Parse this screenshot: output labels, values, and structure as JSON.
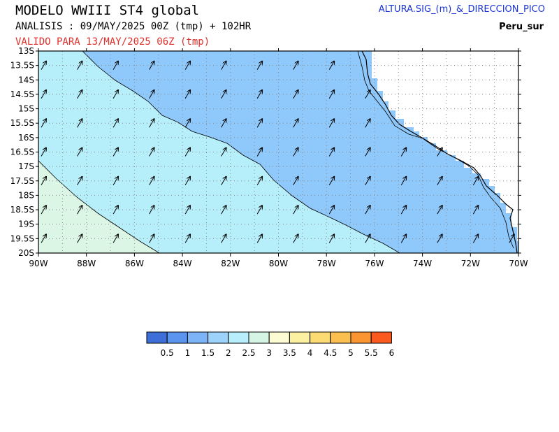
{
  "header": {
    "title": "MODELO WWIII ST4 global",
    "analysis": "ANALISIS : 09/MAY/2025 00Z  (tmp) + 102HR",
    "valid": "VALIDO PARA  13/MAY/2025 06Z  (tmp)",
    "product": "ALTURA.SIG_(m)_&_DIRECCION_PICO",
    "region": "Peru_sur"
  },
  "map": {
    "lat_labels": [
      "13S",
      "13.5S",
      "14S",
      "14.5S",
      "15S",
      "15.5S",
      "16S",
      "16.5S",
      "17S",
      "17.5S",
      "18S",
      "18.5S",
      "19S",
      "19.5S",
      "20S"
    ],
    "lon_labels": [
      "90W",
      "88W",
      "86W",
      "84W",
      "82W",
      "80W",
      "78W",
      "76W",
      "74W",
      "72W",
      "70W"
    ],
    "lon_range": [
      -90,
      -70
    ],
    "lat_range": [
      -20,
      -13
    ],
    "grid": true,
    "colors": {
      "band_1_1.5": "#8fc8fa",
      "band_1.5_2": "#b6eefa",
      "band_2_2.5": "#dcf6e6",
      "land": "#ffffff",
      "coast": "#000000"
    },
    "arrow_icon": "wave-direction-arrow-icon"
  },
  "colorbar": {
    "labels": [
      "0.5",
      "1",
      "1.5",
      "2",
      "2.5",
      "3",
      "3.5",
      "4",
      "4.5",
      "5",
      "5.5",
      "6"
    ],
    "colors": [
      "#3e6fd9",
      "#5b94ef",
      "#7db4f7",
      "#9dd3fb",
      "#b8eefb",
      "#d6f4e3",
      "#fdfbd3",
      "#fbefa2",
      "#fbdb72",
      "#fbbf4f",
      "#fb9532",
      "#fb5a1e"
    ]
  }
}
